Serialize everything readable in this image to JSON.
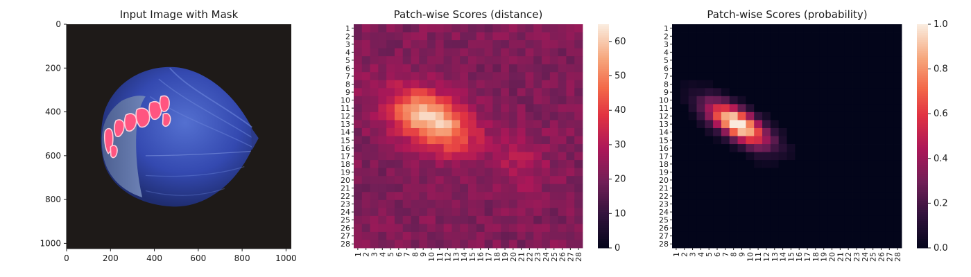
{
  "chart_data": [
    {
      "type": "image",
      "title": "Input Image with Mask",
      "x_ticks": [
        0,
        200,
        400,
        600,
        800,
        1000
      ],
      "y_ticks": [
        0,
        200,
        400,
        600,
        800,
        1000
      ],
      "xlim": [
        0,
        1024
      ],
      "ylim": [
        1024,
        0
      ],
      "colors": {
        "background": "#1e1a18",
        "hazelnut_shell": "#3044a8",
        "hazelnut_highlight": "#5d78d8",
        "hazelnut_base": "#596ea0",
        "mask_overlay": "#ff5580"
      }
    },
    {
      "type": "heatmap",
      "title": "Patch-wise Scores (distance)",
      "x_labels": [
        "1",
        "2",
        "3",
        "4",
        "5",
        "6",
        "7",
        "8",
        "9",
        "10",
        "11",
        "12",
        "13",
        "14",
        "15",
        "16",
        "17",
        "18",
        "19",
        "20",
        "21",
        "22",
        "23",
        "24",
        "25",
        "26",
        "27",
        "28"
      ],
      "y_labels": [
        "1",
        "2",
        "3",
        "4",
        "5",
        "6",
        "7",
        "8",
        "9",
        "10",
        "11",
        "12",
        "13",
        "14",
        "15",
        "16",
        "17",
        "18",
        "19",
        "20",
        "21",
        "22",
        "23",
        "24",
        "25",
        "26",
        "27",
        "28"
      ],
      "colorbar": {
        "min": 0,
        "max": 65,
        "ticks": [
          0,
          10,
          20,
          30,
          40,
          50,
          60
        ]
      },
      "colormap": "rocket",
      "background_level": 22,
      "hotspot": {
        "center_row": 12.5,
        "center_col": 10,
        "peak": 62,
        "description": "bright blob rows 9-17, cols 5-14"
      }
    },
    {
      "type": "heatmap",
      "title": "Patch-wise Scores (probability)",
      "x_labels": [
        "1",
        "2",
        "3",
        "4",
        "5",
        "6",
        "7",
        "8",
        "9",
        "10",
        "11",
        "12",
        "13",
        "14",
        "15",
        "16",
        "17",
        "18",
        "19",
        "20",
        "21",
        "22",
        "23",
        "24",
        "25",
        "26",
        "27",
        "28"
      ],
      "y_labels": [
        "1",
        "2",
        "3",
        "4",
        "5",
        "6",
        "7",
        "8",
        "9",
        "10",
        "11",
        "12",
        "13",
        "14",
        "15",
        "16",
        "17",
        "18",
        "19",
        "20",
        "21",
        "22",
        "23",
        "24",
        "25",
        "26",
        "27",
        "28"
      ],
      "colorbar": {
        "min": 0.0,
        "max": 1.0,
        "ticks": [
          "0.0",
          "0.2",
          "0.4",
          "0.6",
          "0.8",
          "1.0"
        ]
      },
      "colormap": "rocket",
      "background_level": 0.0,
      "hotspot": {
        "center_row": 13,
        "center_col": 8.5,
        "peak": 1.0,
        "description": "bright blob rows 10-16, cols 4-14"
      }
    }
  ]
}
